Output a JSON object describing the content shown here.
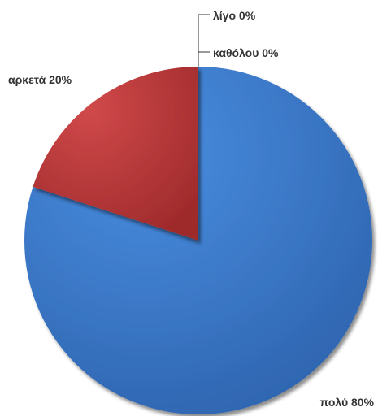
{
  "chart_data": {
    "type": "pie",
    "slices": [
      {
        "label": "πολύ",
        "value": 80,
        "value_text": "πολύ 80%",
        "color": "#3F7FCF"
      },
      {
        "label": "αρκετά",
        "value": 20,
        "value_text": "αρκετά 20%",
        "color": "#C0393A"
      },
      {
        "label": "λίγο",
        "value": 0,
        "value_text": "λίγο 0%",
        "color": "#8BB04A"
      },
      {
        "label": "καθόλου",
        "value": 0,
        "value_text": "καθόλου 0%",
        "color": "#7E5FA3"
      }
    ],
    "start_angle_deg": 0,
    "direction": "clockwise",
    "legend": "none",
    "data_labels": "outside"
  }
}
